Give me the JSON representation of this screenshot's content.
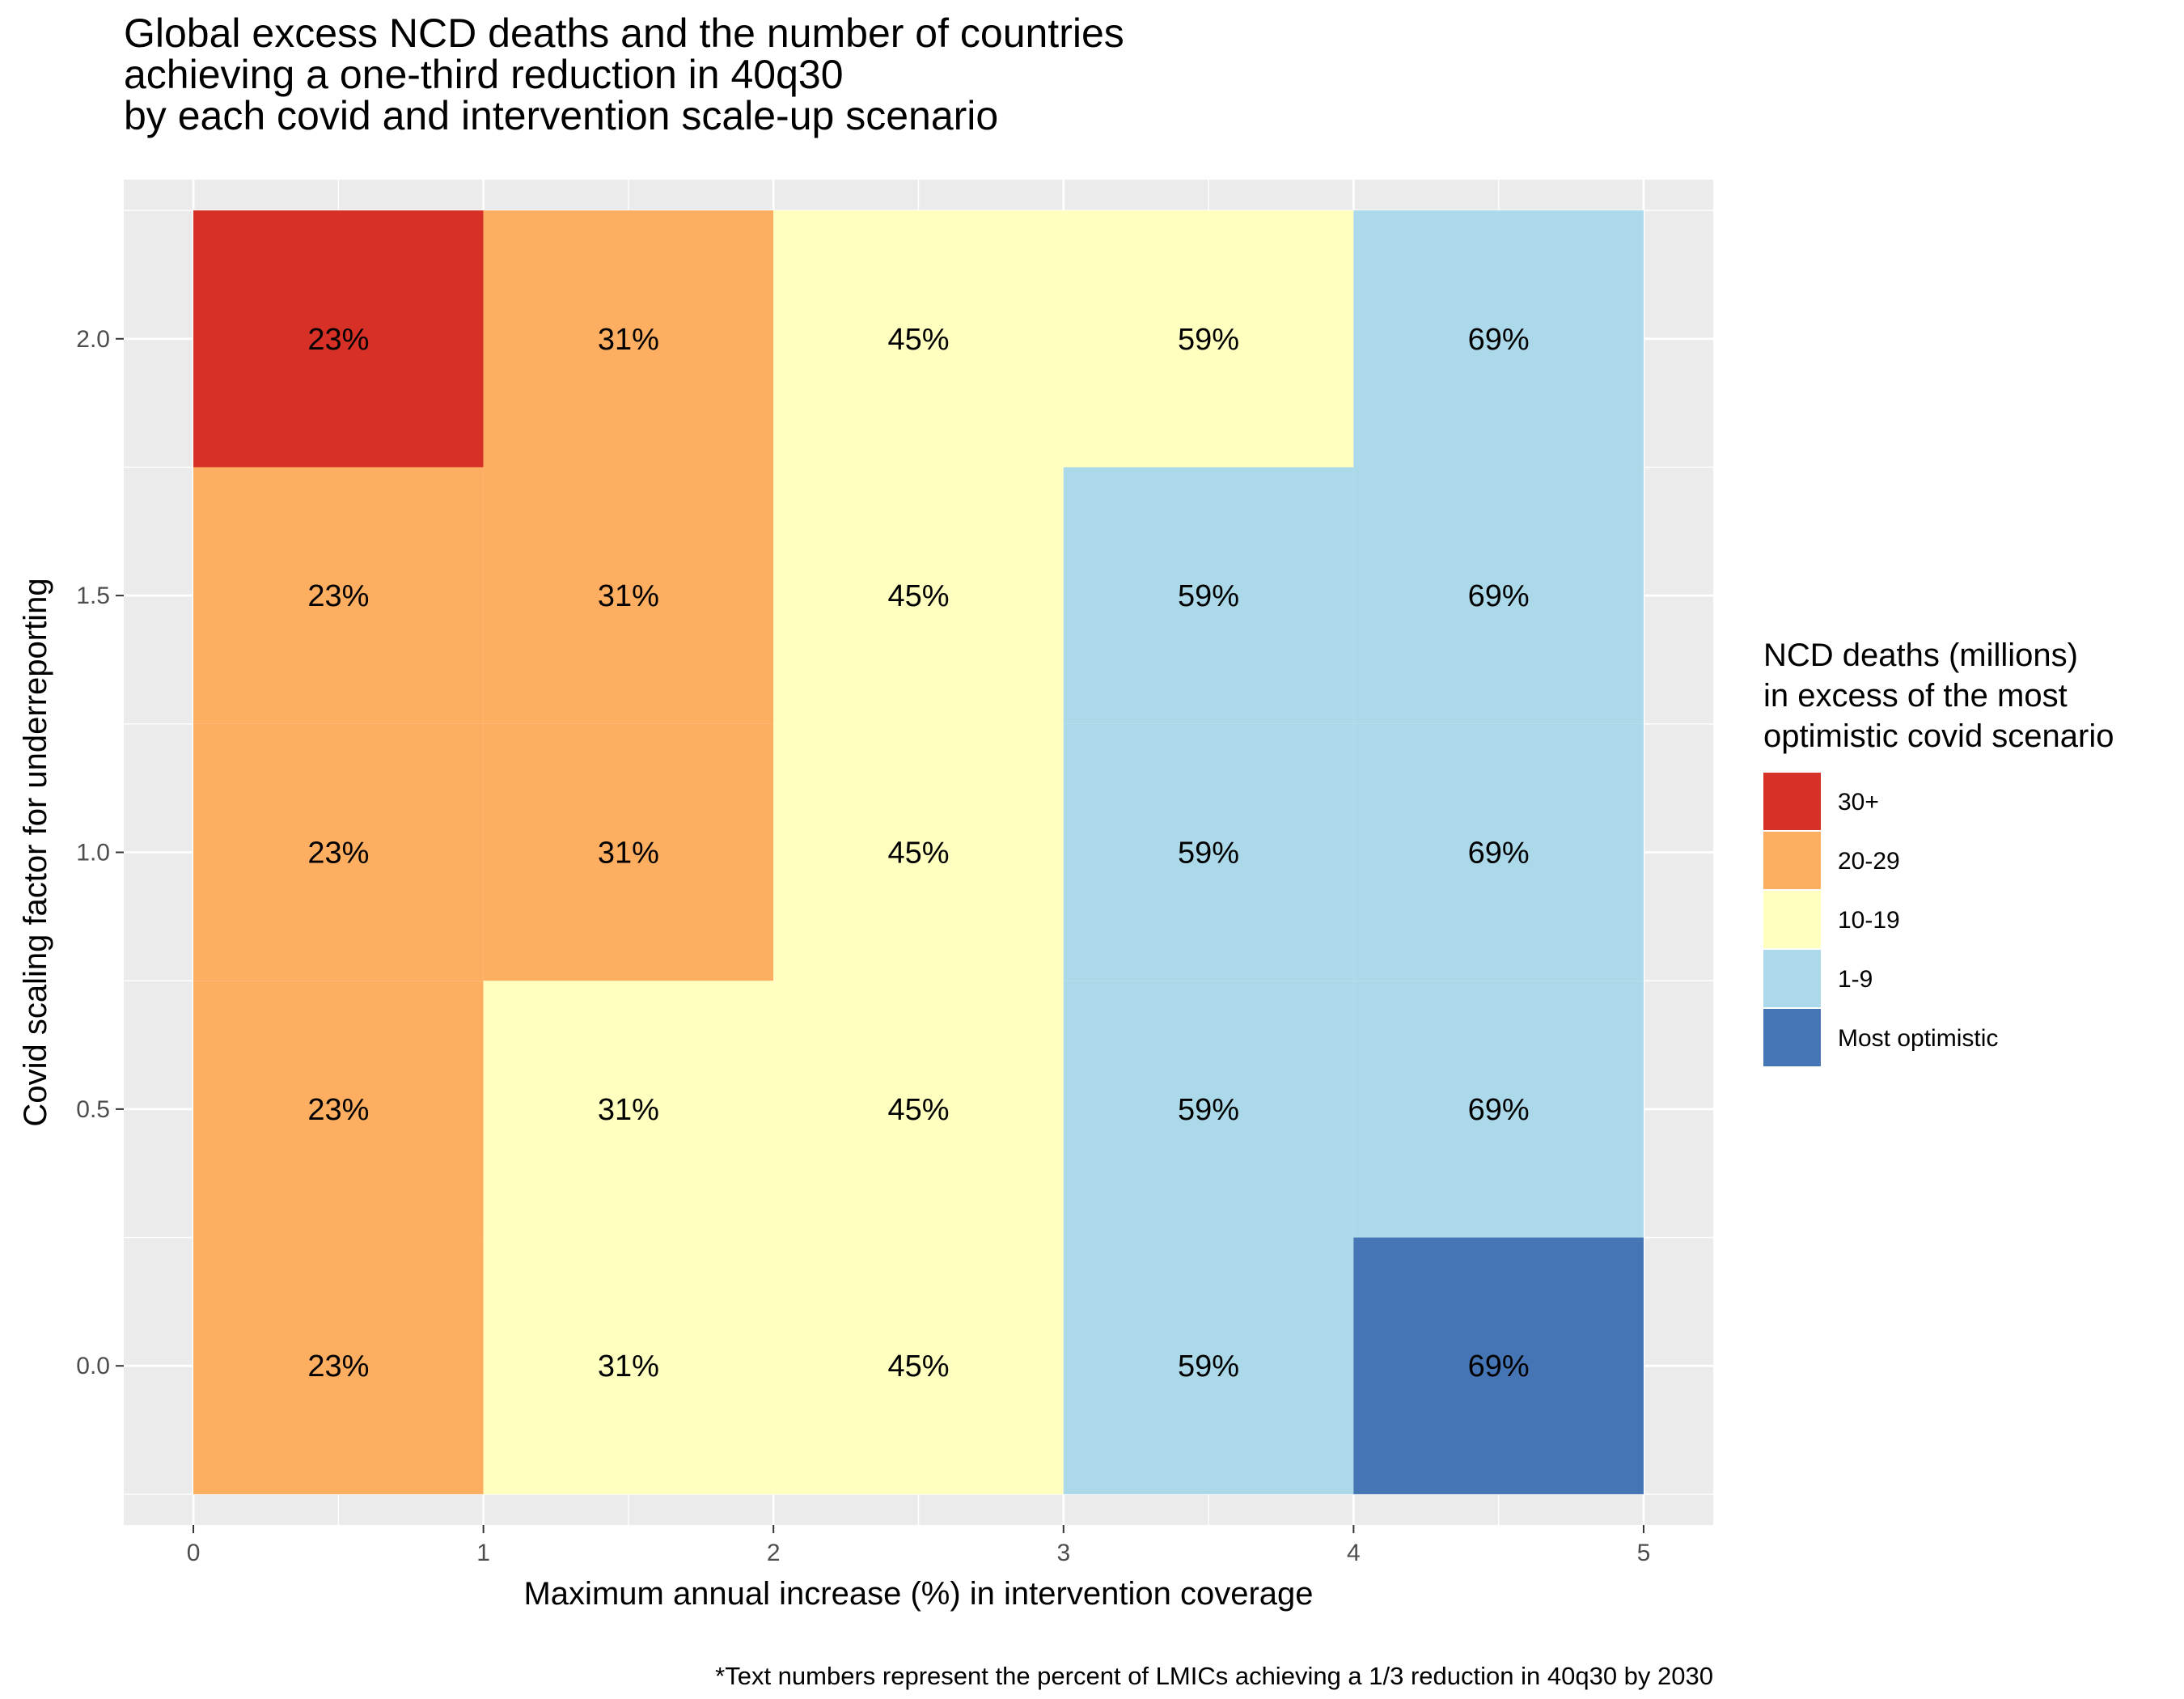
{
  "chart_data": {
    "type": "heatmap",
    "title_lines": [
      "Global excess NCD deaths and the number of countries",
      "achieving a one-third reduction in 40q30",
      "by each covid and intervention scale-up scenario"
    ],
    "xlabel": "Maximum annual increase (%) in intervention coverage",
    "ylabel": "Covid scaling factor for underreporting",
    "caption": "*Text numbers represent the percent of LMICs achieving a 1/3 reduction in 40q30 by 2030",
    "x_ticks": [
      "0",
      "1",
      "2",
      "3",
      "4",
      "5"
    ],
    "y_ticks": [
      "0.0",
      "0.5",
      "1.0",
      "1.5",
      "2.0"
    ],
    "xlim": [
      -0.24,
      5.24
    ],
    "ylim": [
      -0.31,
      2.31
    ],
    "x_centers": [
      0.5,
      1.5,
      2.5,
      3.5,
      4.5
    ],
    "y_centers": [
      0.0,
      0.5,
      1.0,
      1.5,
      2.0
    ],
    "x_labels_pct": [
      "23%",
      "31%",
      "45%",
      "59%",
      "69%"
    ],
    "grid": true,
    "legend": {
      "title_lines": [
        "NCD deaths (millions)",
        "in excess of the most",
        "optimistic covid scenario"
      ],
      "placement": "right",
      "categories": [
        {
          "label": "30+",
          "color": "#d73027"
        },
        {
          "label": "20-29",
          "color": "#fdae61"
        },
        {
          "label": "10-19",
          "color": "#ffffbf"
        },
        {
          "label": "1-9",
          "color": "#abd9e9"
        },
        {
          "label": "Most optimistic",
          "color": "#4575b4"
        }
      ]
    },
    "cells": [
      [
        1,
        2,
        2,
        3,
        4
      ],
      [
        1,
        2,
        2,
        3,
        3
      ],
      [
        1,
        1,
        2,
        3,
        3
      ],
      [
        1,
        1,
        2,
        3,
        3
      ],
      [
        0,
        1,
        2,
        2,
        3
      ]
    ],
    "cells_note_rows": [
      "y=0.0",
      "y=0.5",
      "y=1.0",
      "y=1.5",
      "y=2.0"
    ]
  }
}
